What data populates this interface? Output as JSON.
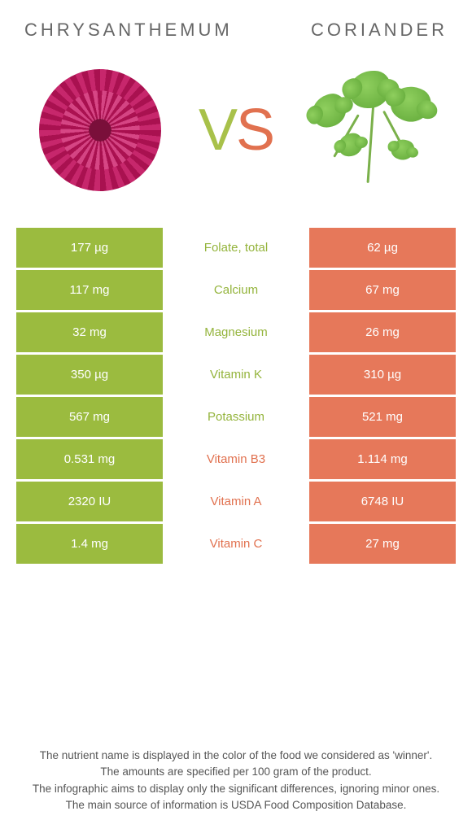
{
  "titles": {
    "left": "CHRYSANTHEMUM",
    "right": "CORIANDER"
  },
  "vs": {
    "v": "V",
    "s": "S"
  },
  "colors": {
    "green": "#94b43c",
    "orange": "#e1714f",
    "green_cell": "#9bbb3f",
    "orange_cell": "#e6785a"
  },
  "rows": [
    {
      "nutrient": "Folate, total",
      "left": "177 µg",
      "right": "62 µg",
      "winner": "left"
    },
    {
      "nutrient": "Calcium",
      "left": "117 mg",
      "right": "67 mg",
      "winner": "left"
    },
    {
      "nutrient": "Magnesium",
      "left": "32 mg",
      "right": "26 mg",
      "winner": "left"
    },
    {
      "nutrient": "Vitamin K",
      "left": "350 µg",
      "right": "310 µg",
      "winner": "left"
    },
    {
      "nutrient": "Potassium",
      "left": "567 mg",
      "right": "521 mg",
      "winner": "left"
    },
    {
      "nutrient": "Vitamin B3",
      "left": "0.531 mg",
      "right": "1.114 mg",
      "winner": "right"
    },
    {
      "nutrient": "Vitamin A",
      "left": "2320 IU",
      "right": "6748 IU",
      "winner": "right"
    },
    {
      "nutrient": "Vitamin C",
      "left": "1.4 mg",
      "right": "27 mg",
      "winner": "right"
    }
  ],
  "footer": {
    "l1": "The nutrient name is displayed in the color of the food we considered as 'winner'.",
    "l2": "The amounts are specified per 100 gram of the product.",
    "l3": "The infographic aims to display only the significant differences, ignoring minor ones.",
    "l4": "The main source of information is USDA Food Composition Database."
  }
}
